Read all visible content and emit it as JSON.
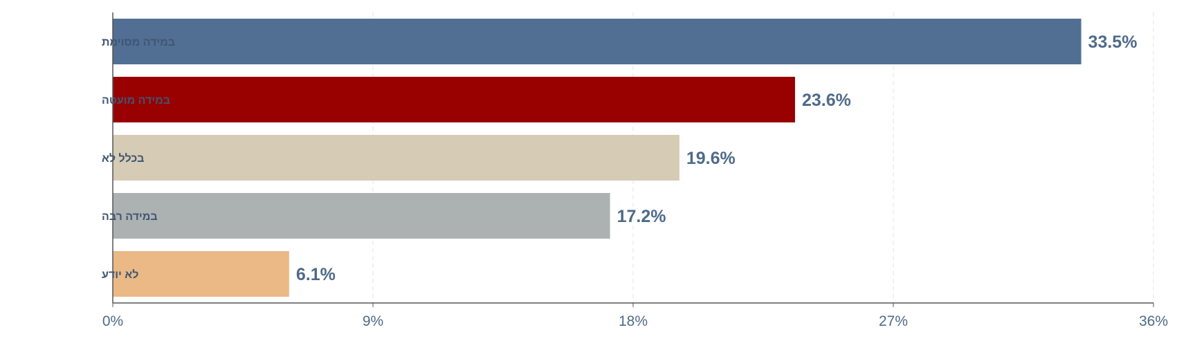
{
  "chart_data": {
    "type": "bar",
    "orientation": "horizontal",
    "categories": [
      "במידה מסוימת",
      "במידה מועטה",
      "בכלל לא",
      "במידה רבה",
      "לא יודע"
    ],
    "values": [
      33.5,
      23.6,
      19.6,
      17.2,
      6.1
    ],
    "value_labels": [
      "33.5%",
      "23.6%",
      "19.6%",
      "17.2%",
      "6.1%"
    ],
    "colors": [
      "#516f93",
      "#990000",
      "#d6cbb5",
      "#acb2b1",
      "#eab985"
    ],
    "xlim": [
      0,
      36
    ],
    "xticks": [
      0,
      9,
      18,
      27,
      36
    ],
    "xtick_labels": [
      "0%",
      "9%",
      "18%",
      "27%",
      "36%"
    ],
    "grid": "vertical-dashed",
    "legend": "none"
  }
}
